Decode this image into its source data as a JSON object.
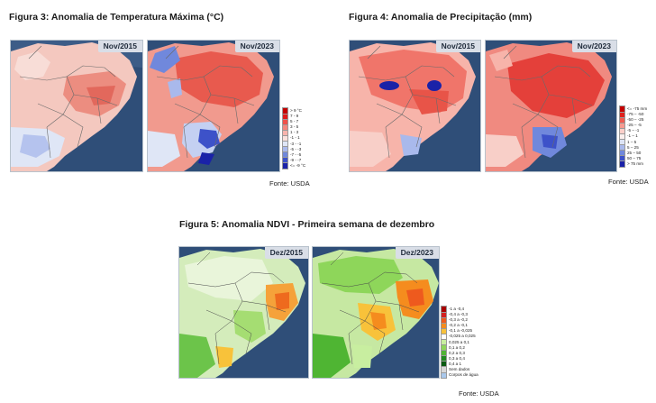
{
  "figures": {
    "fig3": {
      "title": "Figura 3: Anomalia de Temperatura Máxima (°C)",
      "maps": [
        "Nov/2015",
        "Nov/2023"
      ],
      "legend": [
        {
          "label": "> 9 °C",
          "color": "#c40000"
        },
        {
          "label": "7 - 9",
          "color": "#e01a1a"
        },
        {
          "label": "5 - 7",
          "color": "#f0504a"
        },
        {
          "label": "3 - 5",
          "color": "#f6857c"
        },
        {
          "label": "1 - 3",
          "color": "#f8b3ac"
        },
        {
          "label": "-1 - 1",
          "color": "#fbe2de"
        },
        {
          "label": "-3 - -1",
          "color": "#dfe6f6"
        },
        {
          "label": "-5 - -3",
          "color": "#a9b9ec"
        },
        {
          "label": "-7 - -5",
          "color": "#7088dc"
        },
        {
          "label": "-9 - -7",
          "color": "#3d52c9"
        },
        {
          "label": "<= -9 °C",
          "color": "#1a22a8"
        }
      ],
      "source": "Fonte: USDA"
    },
    "fig4": {
      "title": "Figura 4: Anomalia de Precipitação (mm)",
      "maps": [
        "Nov/2015",
        "Nov/2023"
      ],
      "legend": [
        {
          "label": "<= -75 mm",
          "color": "#c40000"
        },
        {
          "label": "-75 – -50",
          "color": "#e0201c"
        },
        {
          "label": "-50 – -25",
          "color": "#f15a50"
        },
        {
          "label": "-25 – -5",
          "color": "#f79a90"
        },
        {
          "label": "-5 – -1",
          "color": "#fbcfc9"
        },
        {
          "label": "-1 – 1",
          "color": "#fbf0ee"
        },
        {
          "label": "1 – 5",
          "color": "#dde4f5"
        },
        {
          "label": "5 – 25",
          "color": "#a9b9ec"
        },
        {
          "label": "25 – 50",
          "color": "#7088dc"
        },
        {
          "label": "50 – 75",
          "color": "#3d52c9"
        },
        {
          "label": "> 75 mm",
          "color": "#1a22a8"
        }
      ],
      "source": "Fonte: USDA"
    },
    "fig5": {
      "title": "Figura 5: Anomalia NDVI - Primeira semana de dezembro",
      "maps": [
        "Dez/2015",
        "Dez/2023"
      ],
      "legend": [
        {
          "label": "-1 a -0,4",
          "color": "#a80000"
        },
        {
          "label": "-0,4 a -0,3",
          "color": "#d42020"
        },
        {
          "label": "-0,3 a -0,2",
          "color": "#ee5a1e"
        },
        {
          "label": "-0,2 a -0,1",
          "color": "#f58c1e"
        },
        {
          "label": "-0,1 a -0,025",
          "color": "#f8c23a"
        },
        {
          "label": "-0,025 a 0,025",
          "color": "#ffffff"
        },
        {
          "label": "0,025 a 0,1",
          "color": "#c8eea0"
        },
        {
          "label": "0,1 a 0,2",
          "color": "#8ed65a"
        },
        {
          "label": "0,2 a 0,3",
          "color": "#4fb533"
        },
        {
          "label": "0,3 a 0,4",
          "color": "#1f8a1f"
        },
        {
          "label": "0,4 a 1",
          "color": "#0a5a12"
        },
        {
          "label": "Sem dados",
          "color": "#d8d8d8"
        },
        {
          "label": "Corpos de água",
          "color": "#a9c8ec"
        }
      ],
      "source": "Fonte: USDA"
    }
  }
}
